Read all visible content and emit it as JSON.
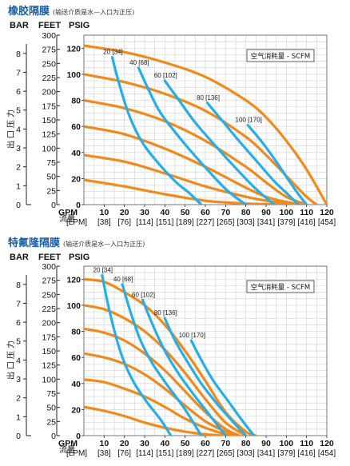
{
  "chart_data": [
    {
      "type": "line",
      "title": "橡胶隔膜",
      "subtitle": "(输送介质是水—入口为正压)",
      "ylabel": "出口压力",
      "xlabel": "流量",
      "unit_headers": [
        "BAR",
        "FEET",
        "PSIG"
      ],
      "x_ticks": {
        "gpm_label": "GPM",
        "lpm_label": "[LPM]",
        "gpm": [
          10,
          20,
          30,
          40,
          50,
          60,
          70,
          80,
          90,
          100,
          110,
          120
        ],
        "lpm": [
          "[38]",
          "[76]",
          "[114]",
          "[151]",
          "[189]",
          "[227]",
          "[265]",
          "[303]",
          "[341]",
          "[379]",
          "[416]",
          "[454]"
        ]
      },
      "y_ticks": {
        "psig": [
          0,
          20,
          40,
          60,
          80,
          100,
          120
        ],
        "feet": [
          0,
          25,
          50,
          75,
          100,
          125,
          150,
          175,
          200,
          225,
          250,
          275,
          300
        ],
        "bar": [
          1,
          2,
          3,
          4,
          5,
          6,
          7,
          8
        ]
      },
      "xlim": [
        0,
        120
      ],
      "ylim": [
        0,
        130
      ],
      "grid": true,
      "legend_text": "空气消耗量 - SCFM",
      "legend_position": "top-right",
      "colors": {
        "pressure": "#f08a1c",
        "air": "#27aee6",
        "grid": "#d6d6d6"
      },
      "pressure_curves": [
        {
          "x": [
            0,
            20,
            40,
            60,
            80,
            90,
            100,
            110,
            120
          ],
          "y": [
            122,
            117,
            109,
            98,
            80,
            67,
            49,
            27,
            0
          ]
        },
        {
          "x": [
            0,
            20,
            40,
            60,
            80,
            90,
            100,
            110,
            115
          ],
          "y": [
            100,
            94,
            85,
            72,
            52,
            38,
            22,
            6,
            0
          ]
        },
        {
          "x": [
            0,
            20,
            40,
            60,
            80,
            90,
            100,
            110
          ],
          "y": [
            80,
            74,
            64,
            49,
            29,
            17,
            6,
            0
          ]
        },
        {
          "x": [
            0,
            20,
            40,
            60,
            80,
            90,
            100,
            108
          ],
          "y": [
            60,
            54,
            43,
            29,
            13,
            6,
            2,
            0
          ]
        },
        {
          "x": [
            0,
            20,
            40,
            60,
            80,
            90,
            100,
            106
          ],
          "y": [
            38,
            33,
            24,
            14,
            6,
            3,
            1,
            0
          ]
        },
        {
          "x": [
            0,
            20,
            40,
            60,
            80,
            100,
            104
          ],
          "y": [
            19,
            14,
            8,
            3,
            0.8,
            0.2,
            0
          ]
        }
      ],
      "air_curves": [
        {
          "label": "20 [34]",
          "x": [
            14,
            17,
            22,
            28,
            35,
            45,
            52,
            58
          ],
          "y": [
            113,
            95,
            70,
            50,
            35,
            18,
            9,
            0
          ]
        },
        {
          "label": "40 [68]",
          "x": [
            27,
            32,
            38,
            48,
            58,
            70,
            80
          ],
          "y": [
            105,
            88,
            70,
            50,
            32,
            12,
            0
          ]
        },
        {
          "label": "60 [102]",
          "x": [
            40,
            47,
            55,
            65,
            75,
            85,
            94
          ],
          "y": [
            95,
            80,
            63,
            45,
            28,
            12,
            0
          ]
        },
        {
          "label": "80 [136]",
          "x": [
            61,
            68,
            76,
            85,
            94,
            100,
            106
          ],
          "y": [
            78,
            65,
            50,
            34,
            18,
            9,
            0
          ]
        },
        {
          "label": "100 [170]",
          "x": [
            81,
            88,
            95,
            101,
            106,
            110
          ],
          "y": [
            61,
            48,
            33,
            19,
            8,
            0
          ]
        }
      ]
    },
    {
      "type": "line",
      "title": "特氟隆隔膜",
      "subtitle": "(输送介质是水—入口为正压)",
      "ylabel": "出口压力",
      "xlabel": "流量",
      "unit_headers": [
        "BAR",
        "FEET",
        "PSIG"
      ],
      "x_ticks": {
        "gpm_label": "GPM",
        "lpm_label": "[LPM]",
        "gpm": [
          10,
          20,
          30,
          40,
          50,
          60,
          70,
          80,
          90,
          100,
          110,
          120
        ],
        "lpm": [
          "[38]",
          "[76]",
          "[114]",
          "[151]",
          "[189]",
          "[227]",
          "[265]",
          "[303]",
          "[341]",
          "[379]",
          "[416]",
          "[454]"
        ]
      },
      "y_ticks": {
        "psig": [
          0,
          20,
          40,
          60,
          80,
          100,
          120
        ],
        "feet": [
          0,
          25,
          50,
          75,
          100,
          125,
          150,
          175,
          200,
          225,
          250,
          275,
          300
        ],
        "bar": [
          1,
          2,
          3,
          4,
          5,
          6,
          7,
          8
        ]
      },
      "xlim": [
        0,
        120
      ],
      "ylim": [
        0,
        130
      ],
      "grid": true,
      "legend_text": "空气消耗量 - SCFM",
      "legend_position": "top-right",
      "colors": {
        "pressure": "#f08a1c",
        "air": "#27aee6",
        "grid": "#d6d6d6"
      },
      "pressure_curves": [
        {
          "x": [
            0,
            10,
            20,
            30,
            40,
            50,
            60,
            70,
            80,
            85
          ],
          "y": [
            120,
            118,
            110,
            100,
            85,
            65,
            42,
            18,
            3,
            0
          ]
        },
        {
          "x": [
            0,
            10,
            20,
            30,
            40,
            50,
            60,
            70,
            80
          ],
          "y": [
            100,
            97,
            90,
            80,
            66,
            48,
            28,
            10,
            0
          ]
        },
        {
          "x": [
            0,
            10,
            20,
            30,
            40,
            50,
            60,
            70,
            77
          ],
          "y": [
            82,
            79,
            73,
            63,
            50,
            34,
            18,
            5,
            0
          ]
        },
        {
          "x": [
            0,
            10,
            20,
            30,
            40,
            50,
            60,
            70,
            75
          ],
          "y": [
            63,
            60,
            55,
            47,
            36,
            23,
            11,
            3,
            0
          ]
        },
        {
          "x": [
            0,
            10,
            20,
            30,
            40,
            50,
            60,
            70,
            73
          ],
          "y": [
            43,
            41,
            36,
            30,
            22,
            13,
            6,
            1,
            0
          ]
        },
        {
          "x": [
            0,
            10,
            20,
            30,
            40,
            50,
            60,
            68
          ],
          "y": [
            22,
            19,
            15,
            10,
            6,
            3,
            1,
            0
          ]
        }
      ],
      "air_curves": [
        {
          "label": "20 [34]",
          "x": [
            9,
            12,
            16,
            20,
            25,
            31,
            38,
            43
          ],
          "y": [
            123,
            100,
            75,
            56,
            40,
            26,
            12,
            0
          ]
        },
        {
          "label": "40 [68]",
          "x": [
            19,
            23,
            28,
            34,
            42,
            50,
            58
          ],
          "y": [
            116,
            95,
            73,
            55,
            37,
            20,
            0
          ]
        },
        {
          "label": "60 [102]",
          "x": [
            29,
            34,
            40,
            47,
            55,
            63,
            70
          ],
          "y": [
            104,
            85,
            65,
            47,
            30,
            14,
            0
          ]
        },
        {
          "label": "80 [136]",
          "x": [
            40,
            45,
            51,
            58,
            66,
            74,
            80
          ],
          "y": [
            90,
            73,
            57,
            40,
            24,
            10,
            0
          ]
        },
        {
          "label": "100 [170]",
          "x": [
            53,
            58,
            64,
            71,
            78,
            84
          ],
          "y": [
            73,
            58,
            42,
            27,
            12,
            0
          ]
        }
      ]
    }
  ]
}
